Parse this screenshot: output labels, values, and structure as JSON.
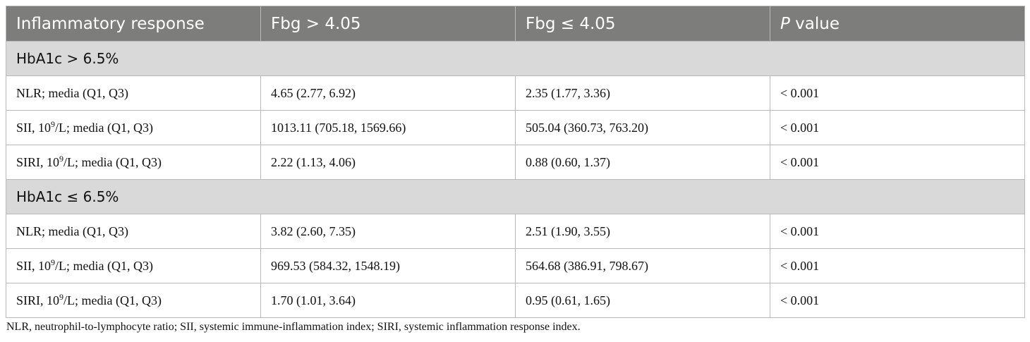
{
  "header": {
    "col1": "Inflammatory response",
    "col2": "Fbg > 4.05",
    "col3": "Fbg ≤ 4.05",
    "col4_italic": "P",
    "col4_rest": " value"
  },
  "groups": [
    {
      "label": "HbA1c > 6.5%",
      "rows": [
        {
          "pre": "NLR; media (Q1, Q3)",
          "sup": "",
          "post": "",
          "fbg_high": "4.65 (2.77, 6.92)",
          "fbg_low": "2.35 (1.77, 3.36)",
          "p": "< 0.001"
        },
        {
          "pre": "SII, 10",
          "sup": "9",
          "post": "/L; media (Q1, Q3)",
          "fbg_high": "1013.11 (705.18, 1569.66)",
          "fbg_low": "505.04 (360.73, 763.20)",
          "p": "< 0.001"
        },
        {
          "pre": "SIRI, 10",
          "sup": "9",
          "post": "/L; media (Q1, Q3)",
          "fbg_high": "2.22 (1.13, 4.06)",
          "fbg_low": "0.88 (0.60, 1.37)",
          "p": "< 0.001"
        }
      ]
    },
    {
      "label": "HbA1c ≤ 6.5%",
      "rows": [
        {
          "pre": "NLR; media (Q1, Q3)",
          "sup": "",
          "post": "",
          "fbg_high": "3.82 (2.60, 7.35)",
          "fbg_low": "2.51 (1.90, 3.55)",
          "p": "< 0.001"
        },
        {
          "pre": "SII, 10",
          "sup": "9",
          "post": "/L; media (Q1, Q3)",
          "fbg_high": "969.53 (584.32, 1548.19)",
          "fbg_low": "564.68 (386.91, 798.67)",
          "p": "< 0.001"
        },
        {
          "pre": "SIRI, 10",
          "sup": "9",
          "post": "/L; media (Q1, Q3)",
          "fbg_high": "1.70 (1.01, 3.64)",
          "fbg_low": "0.95 (0.61, 1.65)",
          "p": "< 0.001"
        }
      ]
    }
  ],
  "footnote": "NLR, neutrophil-to-lymphocyte ratio; SII, systemic immune-inflammation index; SIRI, systemic inflammation response index."
}
